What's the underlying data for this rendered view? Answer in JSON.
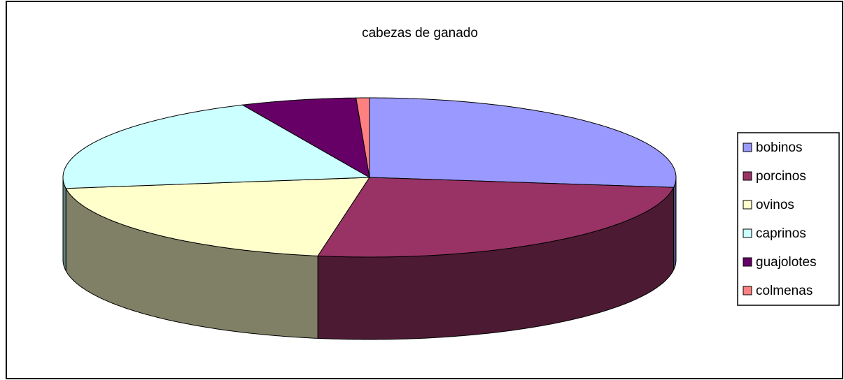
{
  "chart_data": {
    "type": "pie",
    "title": "cabezas de ganado",
    "categories": [
      "bobinos",
      "porcinos",
      "ovinos",
      "caprinos",
      "guajolotes",
      "colmenas"
    ],
    "values": [
      27,
      25.7,
      20.1,
      20.4,
      6.1,
      0.7
    ],
    "colors": [
      "#9999ff",
      "#993366",
      "#ffffcc",
      "#ccffff",
      "#660066",
      "#ff8080"
    ],
    "legend": "right"
  }
}
